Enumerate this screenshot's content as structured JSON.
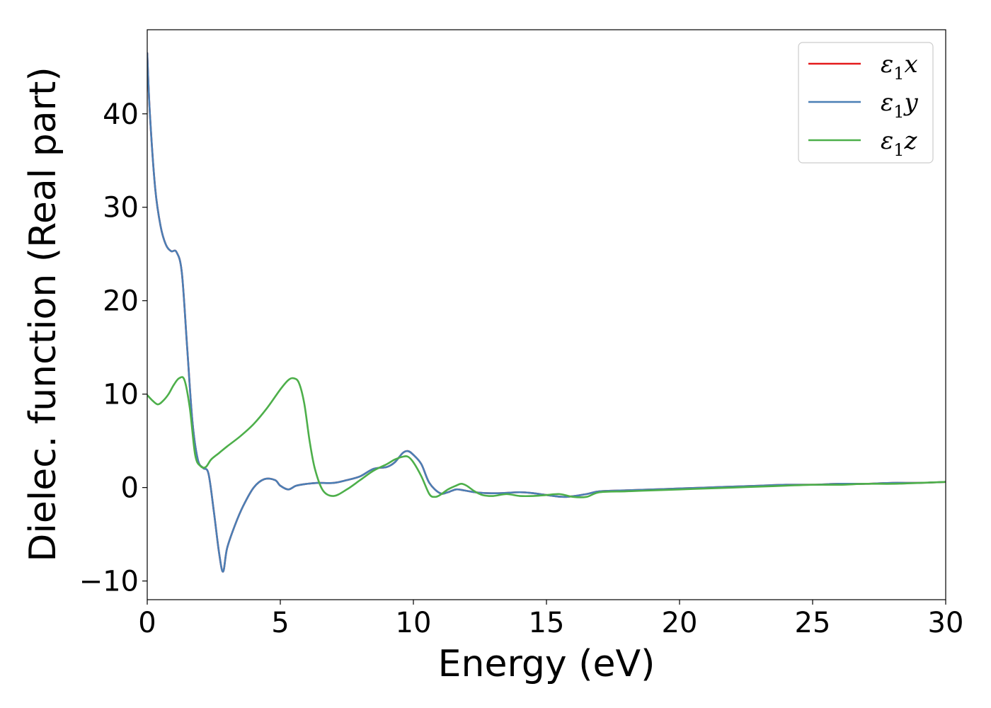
{
  "chart_data": {
    "type": "line",
    "xlabel": "Energy (eV)",
    "ylabel": "Dielec. function (Real part)",
    "xlim": [
      0,
      30
    ],
    "ylim": [
      -12,
      49
    ],
    "xticks": [
      0,
      5,
      10,
      15,
      20,
      25,
      30
    ],
    "xtick_labels": [
      "0",
      "5",
      "10",
      "15",
      "20",
      "25",
      "30"
    ],
    "yticks": [
      -10,
      0,
      10,
      20,
      30,
      40
    ],
    "ytick_labels": [
      "−10",
      "0",
      "10",
      "20",
      "30",
      "40"
    ],
    "grid": false,
    "legend_position": "top-right",
    "series": [
      {
        "name": "ε₁x",
        "legend": {
          "symbol": "ε",
          "sub": "1",
          "axis": "x"
        },
        "color": "#e41a1c",
        "x": [
          0,
          0.1,
          0.3,
          0.5,
          0.7,
          0.9,
          1.1,
          1.3,
          1.5,
          1.7,
          1.9,
          2.1,
          2.3,
          2.5,
          2.7,
          2.85,
          3.0,
          3.3,
          3.6,
          4.0,
          4.4,
          4.8,
          5.0,
          5.3,
          5.6,
          6.0,
          6.4,
          7.0,
          7.5,
          8.0,
          8.5,
          9.0,
          9.3,
          9.6,
          9.8,
          10.0,
          10.3,
          10.6,
          11.0,
          11.3,
          11.6,
          11.9,
          12.3,
          12.8,
          13.3,
          14.0,
          14.5,
          15.0,
          15.7,
          16.5,
          17.0,
          18.0,
          19.0,
          20.0,
          21.0,
          22.0,
          23.0,
          24.0,
          25.0,
          26.0,
          27.0,
          28.0,
          29.0,
          30.0
        ],
        "y": [
          46.5,
          40,
          32,
          28,
          26,
          25.3,
          25.2,
          23,
          15,
          7,
          3,
          2.1,
          1.5,
          -2.5,
          -7,
          -9,
          -6.5,
          -4,
          -2,
          0,
          0.9,
          0.8,
          0.2,
          -0.2,
          0.2,
          0.4,
          0.5,
          0.5,
          0.8,
          1.2,
          2,
          2.2,
          2.7,
          3.7,
          3.9,
          3.5,
          2.5,
          0.5,
          -0.6,
          -0.5,
          -0.2,
          -0.3,
          -0.5,
          -0.6,
          -0.6,
          -0.5,
          -0.6,
          -0.8,
          -1.0,
          -0.7,
          -0.4,
          -0.3,
          -0.2,
          -0.1,
          0,
          0.1,
          0.2,
          0.3,
          0.3,
          0.4,
          0.4,
          0.5,
          0.5,
          0.6
        ]
      },
      {
        "name": "ε₁y",
        "legend": {
          "symbol": "ε",
          "sub": "1",
          "axis": "y"
        },
        "color": "#4a7fb5",
        "x": [
          0,
          0.1,
          0.3,
          0.5,
          0.7,
          0.9,
          1.1,
          1.3,
          1.5,
          1.7,
          1.9,
          2.1,
          2.3,
          2.5,
          2.7,
          2.85,
          3.0,
          3.3,
          3.6,
          4.0,
          4.4,
          4.8,
          5.0,
          5.3,
          5.6,
          6.0,
          6.4,
          7.0,
          7.5,
          8.0,
          8.5,
          9.0,
          9.3,
          9.6,
          9.8,
          10.0,
          10.3,
          10.6,
          11.0,
          11.3,
          11.6,
          11.9,
          12.3,
          12.8,
          13.3,
          14.0,
          14.5,
          15.0,
          15.7,
          16.5,
          17.0,
          18.0,
          19.0,
          20.0,
          21.0,
          22.0,
          23.0,
          24.0,
          25.0,
          26.0,
          27.0,
          28.0,
          29.0,
          30.0
        ],
        "y": [
          46.5,
          40,
          32,
          28,
          26,
          25.3,
          25.2,
          23,
          15,
          7,
          3,
          2.1,
          1.5,
          -2.5,
          -7,
          -9,
          -6.5,
          -4,
          -2,
          0,
          0.9,
          0.8,
          0.2,
          -0.2,
          0.2,
          0.4,
          0.5,
          0.5,
          0.8,
          1.2,
          2,
          2.2,
          2.7,
          3.7,
          3.9,
          3.5,
          2.5,
          0.5,
          -0.6,
          -0.5,
          -0.2,
          -0.3,
          -0.5,
          -0.6,
          -0.6,
          -0.5,
          -0.6,
          -0.8,
          -1.0,
          -0.7,
          -0.4,
          -0.3,
          -0.2,
          -0.1,
          0,
          0.1,
          0.2,
          0.3,
          0.3,
          0.4,
          0.4,
          0.5,
          0.5,
          0.6
        ]
      },
      {
        "name": "ε₁z",
        "legend": {
          "symbol": "ε",
          "sub": "1",
          "axis": "z"
        },
        "color": "#4daf4a",
        "x": [
          0,
          0.2,
          0.4,
          0.6,
          0.8,
          1.0,
          1.2,
          1.4,
          1.6,
          1.8,
          2.0,
          2.2,
          2.4,
          2.7,
          3.0,
          3.5,
          4.0,
          4.5,
          5.0,
          5.3,
          5.5,
          5.7,
          5.9,
          6.1,
          6.3,
          6.6,
          7.0,
          7.5,
          8.0,
          8.5,
          9.0,
          9.3,
          9.6,
          9.8,
          10.0,
          10.3,
          10.6,
          10.8,
          11.0,
          11.3,
          11.6,
          11.8,
          12.0,
          12.3,
          12.6,
          13.0,
          13.5,
          14.0,
          14.5,
          15.0,
          15.5,
          16.0,
          16.5,
          17.0,
          18.0,
          19.0,
          20.0,
          21.0,
          22.0,
          23.0,
          24.0,
          25.0,
          26.0,
          27.0,
          28.0,
          29.0,
          30.0
        ],
        "y": [
          9.9,
          9.3,
          8.9,
          9.3,
          10,
          11,
          11.7,
          11.5,
          8.5,
          3.5,
          2.3,
          2.2,
          3,
          3.7,
          4.4,
          5.5,
          6.8,
          8.5,
          10.5,
          11.5,
          11.7,
          11.2,
          9,
          5,
          2,
          -0.3,
          -0.9,
          -0.2,
          0.8,
          1.8,
          2.5,
          3.0,
          3.3,
          3.3,
          2.7,
          1.2,
          -0.7,
          -1.0,
          -0.8,
          -0.2,
          0.2,
          0.4,
          0.2,
          -0.4,
          -0.8,
          -0.9,
          -0.7,
          -0.9,
          -0.9,
          -0.8,
          -0.7,
          -1.0,
          -1.0,
          -0.5,
          -0.4,
          -0.3,
          -0.2,
          -0.1,
          0,
          0.1,
          0.2,
          0.3,
          0.3,
          0.4,
          0.4,
          0.5,
          0.6
        ]
      }
    ]
  }
}
